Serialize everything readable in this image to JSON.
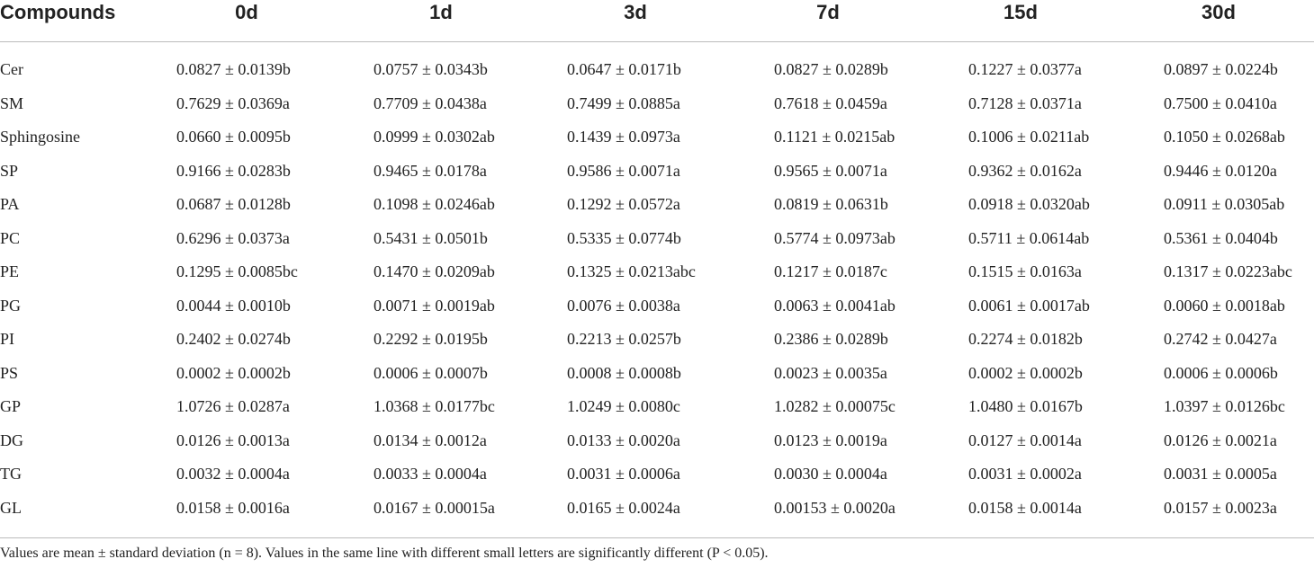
{
  "header": {
    "columns": [
      "Compounds",
      "0d",
      "1d",
      "3d",
      "7d",
      "15d",
      "30d"
    ]
  },
  "table": {
    "rows": [
      [
        "Cer",
        "0.0827 ± 0.0139b",
        "0.0757 ± 0.0343b",
        "0.0647 ± 0.0171b",
        "0.0827 ± 0.0289b",
        "0.1227 ± 0.0377a",
        "0.0897 ± 0.0224b"
      ],
      [
        "SM",
        "0.7629 ± 0.0369a",
        "0.7709 ± 0.0438a",
        "0.7499 ± 0.0885a",
        "0.7618 ± 0.0459a",
        "0.7128 ± 0.0371a",
        "0.7500 ± 0.0410a"
      ],
      [
        "Sphingosine",
        "0.0660 ± 0.0095b",
        "0.0999 ± 0.0302ab",
        "0.1439 ± 0.0973a",
        "0.1121 ± 0.0215ab",
        "0.1006 ± 0.0211ab",
        "0.1050 ± 0.0268ab"
      ],
      [
        "SP",
        "0.9166 ± 0.0283b",
        "0.9465 ± 0.0178a",
        "0.9586 ± 0.0071a",
        "0.9565 ± 0.0071a",
        "0.9362 ± 0.0162a",
        "0.9446 ± 0.0120a"
      ],
      [
        "PA",
        "0.0687 ± 0.0128b",
        "0.1098 ± 0.0246ab",
        "0.1292 ± 0.0572a",
        "0.0819 ± 0.0631b",
        "0.0918 ± 0.0320ab",
        "0.0911 ± 0.0305ab"
      ],
      [
        "PC",
        "0.6296 ± 0.0373a",
        "0.5431 ± 0.0501b",
        "0.5335 ± 0.0774b",
        "0.5774 ± 0.0973ab",
        "0.5711 ± 0.0614ab",
        "0.5361 ± 0.0404b"
      ],
      [
        "PE",
        "0.1295 ± 0.0085bc",
        "0.1470 ± 0.0209ab",
        "0.1325 ± 0.0213abc",
        "0.1217 ± 0.0187c",
        "0.1515 ± 0.0163a",
        "0.1317 ± 0.0223abc"
      ],
      [
        "PG",
        "0.0044 ± 0.0010b",
        "0.0071 ± 0.0019ab",
        "0.0076 ± 0.0038a",
        "0.0063 ± 0.0041ab",
        "0.0061 ± 0.0017ab",
        "0.0060 ± 0.0018ab"
      ],
      [
        "PI",
        "0.2402 ± 0.0274b",
        "0.2292 ± 0.0195b",
        "0.2213 ± 0.0257b",
        "0.2386 ± 0.0289b",
        "0.2274 ± 0.0182b",
        "0.2742 ± 0.0427a"
      ],
      [
        "PS",
        "0.0002 ± 0.0002b",
        "0.0006 ± 0.0007b",
        "0.0008 ± 0.0008b",
        "0.0023 ± 0.0035a",
        "0.0002 ± 0.0002b",
        "0.0006 ± 0.0006b"
      ],
      [
        "GP",
        "1.0726 ± 0.0287a",
        "1.0368 ± 0.0177bc",
        "1.0249 ± 0.0080c",
        "1.0282 ± 0.00075c",
        "1.0480 ± 0.0167b",
        "1.0397 ± 0.0126bc"
      ],
      [
        "DG",
        "0.0126 ± 0.0013a",
        "0.0134 ± 0.0012a",
        "0.0133 ± 0.0020a",
        "0.0123 ± 0.0019a",
        "0.0127 ± 0.0014a",
        "0.0126 ± 0.0021a"
      ],
      [
        "TG",
        "0.0032 ± 0.0004a",
        "0.0033 ± 0.0004a",
        "0.0031 ± 0.0006a",
        "0.0030 ± 0.0004a",
        "0.0031 ± 0.0002a",
        "0.0031 ± 0.0005a"
      ],
      [
        "GL",
        "0.0158 ± 0.0016a",
        "0.0167 ± 0.00015a",
        "0.0165 ± 0.0024a",
        "0.00153 ± 0.0020a",
        "0.0158 ± 0.0014a",
        "0.0157 ± 0.0023a"
      ]
    ]
  },
  "footnote": "Values are mean ± standard deviation (n = 8). Values in the same line with different small letters are significantly different (P < 0.05)."
}
